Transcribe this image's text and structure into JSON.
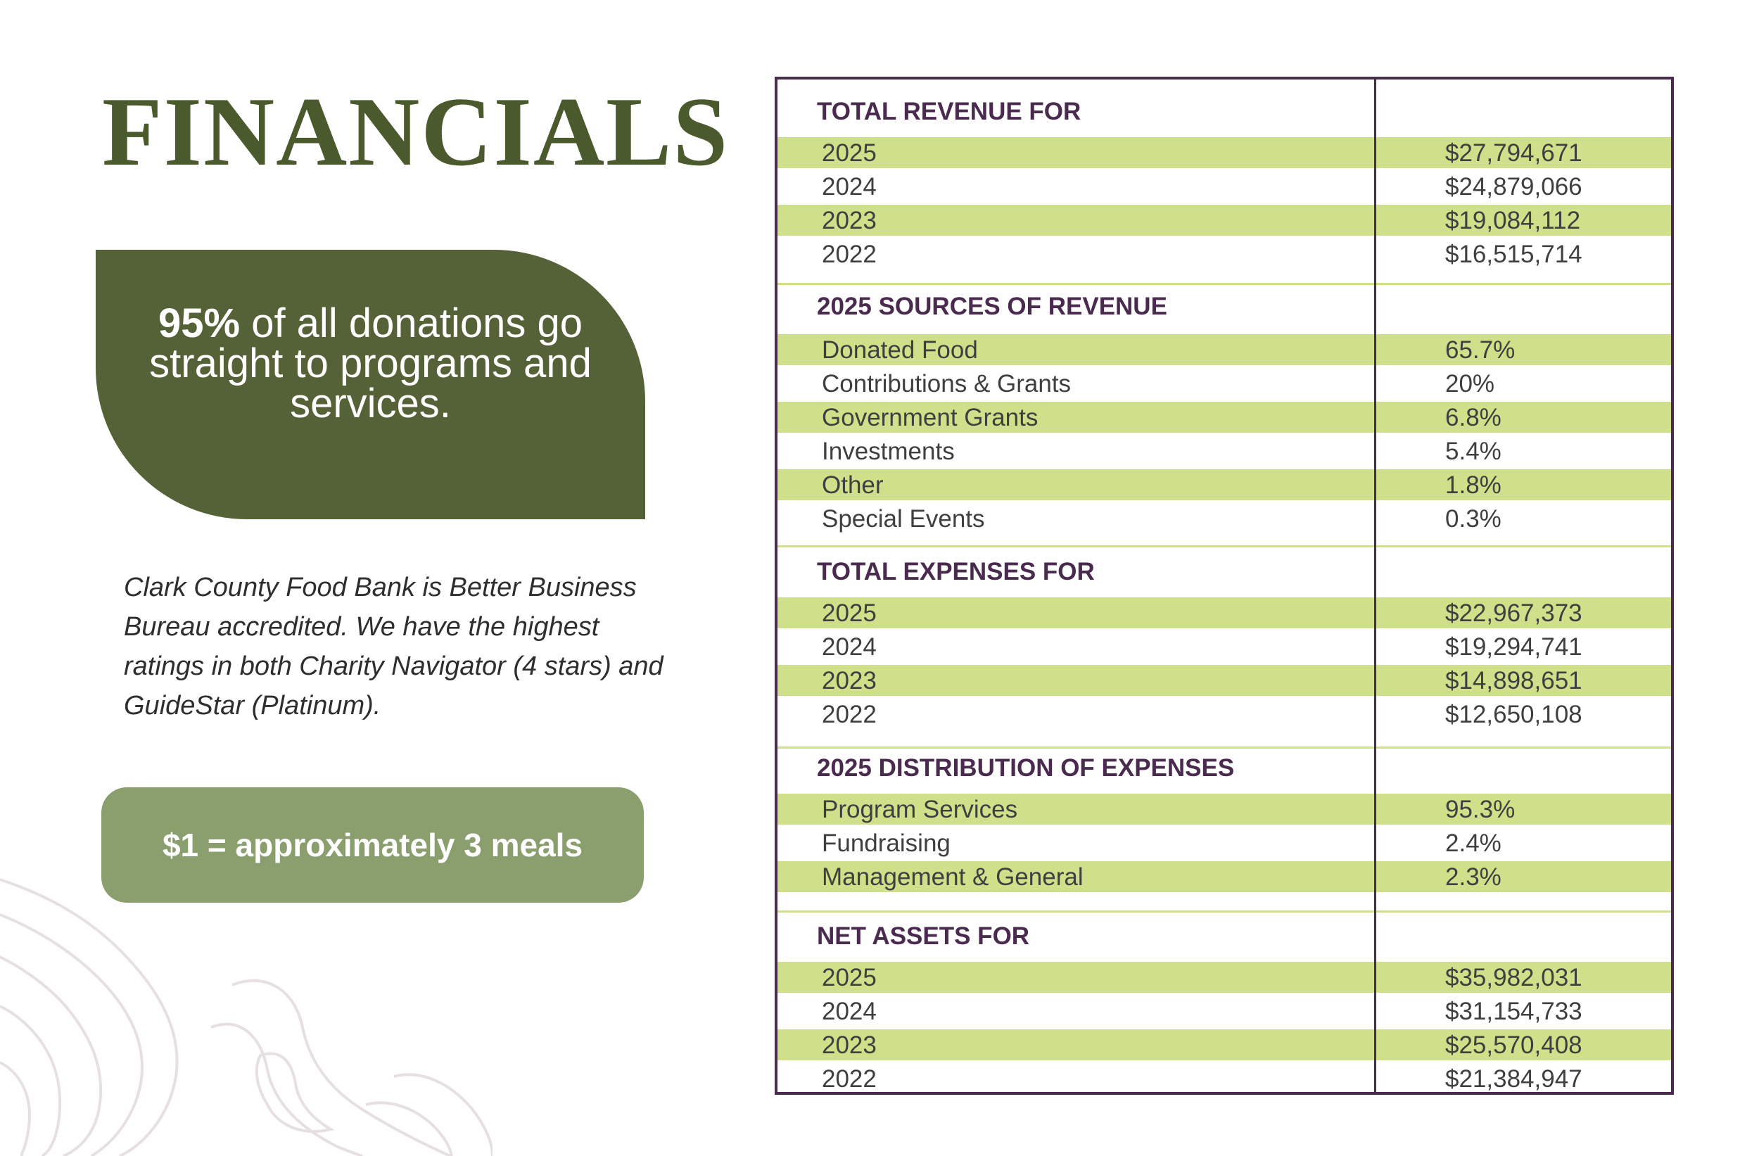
{
  "page": {
    "title": "FINANCIALS",
    "promo": {
      "highlight": "95%",
      "text": " of all donations go straight to programs and services."
    },
    "bbb_text": "Clark County Food Bank is Better Business Bureau accredited. We have the highest ratings in both Charity Navigator (4 stars) and GuideStar (Platinum).",
    "meals": "$1 = approximately 3 meals"
  },
  "colors": {
    "title": "#4a5a2c",
    "promo_box": "#556136",
    "meals_box": "#8b9f6e",
    "row_highlight": "#cfe08a",
    "heading": "#4a2b4f",
    "table_border": "#4a2b4f"
  },
  "table": {
    "sections": [
      {
        "title": "TOTAL REVENUE FOR",
        "rows": [
          {
            "label": "2025",
            "value": "$27,794,671"
          },
          {
            "label": "2024",
            "value": "$24,879,066"
          },
          {
            "label": "2023",
            "value": "$19,084,112"
          },
          {
            "label": "2022",
            "value": "$16,515,714"
          }
        ]
      },
      {
        "title": "2025 SOURCES OF REVENUE",
        "rows": [
          {
            "label": "Donated Food",
            "value": "65.7%"
          },
          {
            "label": "Contributions & Grants",
            "value": "20%"
          },
          {
            "label": "Government Grants",
            "value": "6.8%"
          },
          {
            "label": "Investments",
            "value": "5.4%"
          },
          {
            "label": "Other",
            "value": "1.8%"
          },
          {
            "label": "Special Events",
            "value": "0.3%"
          }
        ]
      },
      {
        "title": "TOTAL EXPENSES FOR",
        "rows": [
          {
            "label": "2025",
            "value": "$22,967,373"
          },
          {
            "label": "2024",
            "value": "$19,294,741"
          },
          {
            "label": "2023",
            "value": "$14,898,651"
          },
          {
            "label": "2022",
            "value": "$12,650,108"
          }
        ]
      },
      {
        "title": "2025 DISTRIBUTION OF EXPENSES",
        "rows": [
          {
            "label": "Program Services",
            "value": "95.3%"
          },
          {
            "label": "Fundraising",
            "value": "2.4%"
          },
          {
            "label": "Management & General",
            "value": "2.3%"
          }
        ]
      },
      {
        "title": "NET ASSETS FOR",
        "rows": [
          {
            "label": "2025",
            "value": "$35,982,031"
          },
          {
            "label": "2024",
            "value": "$31,154,733"
          },
          {
            "label": "2023",
            "value": "$25,570,408"
          },
          {
            "label": "2022",
            "value": "$21,384,947"
          }
        ]
      }
    ]
  }
}
